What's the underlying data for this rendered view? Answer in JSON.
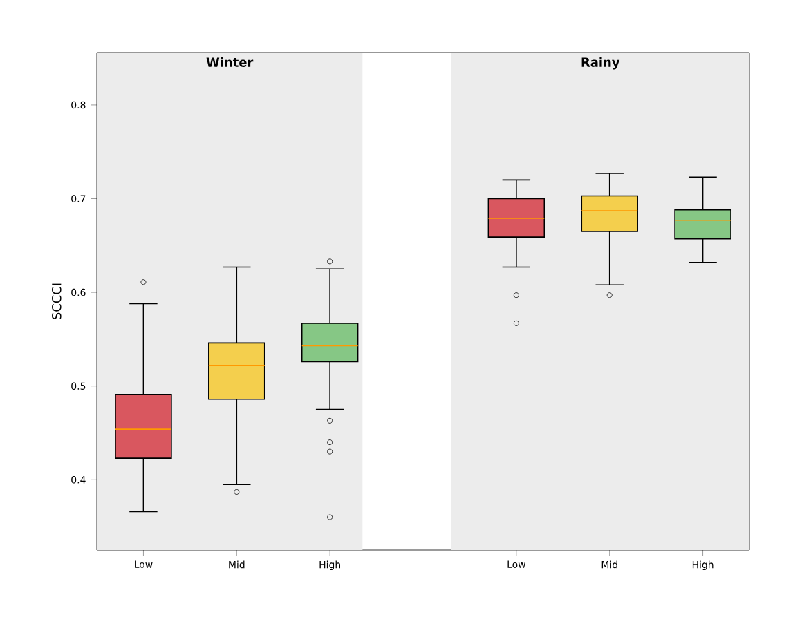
{
  "chart_data": {
    "type": "box",
    "ylabel": "SCCCI",
    "categories": [
      "Low",
      "Mid",
      "High",
      null,
      "Low",
      "Mid",
      "High"
    ],
    "colors": [
      "#d9575f",
      "#f4cf4d",
      "#86c785",
      null,
      "#d9575f",
      "#f4cf4d",
      "#86c785"
    ],
    "boxes": [
      {
        "low": 0.366,
        "q1": 0.423,
        "median": 0.454,
        "q3": 0.491,
        "high": 0.588,
        "outliers": [
          0.611
        ]
      },
      {
        "low": 0.395,
        "q1": 0.486,
        "median": 0.522,
        "q3": 0.546,
        "high": 0.627,
        "outliers": [
          0.387
        ]
      },
      {
        "low": 0.475,
        "q1": 0.526,
        "median": 0.543,
        "q3": 0.567,
        "high": 0.625,
        "outliers": [
          0.633,
          0.463,
          0.44,
          0.43,
          0.36
        ]
      },
      null,
      {
        "low": 0.627,
        "q1": 0.659,
        "median": 0.679,
        "q3": 0.7,
        "high": 0.72,
        "outliers": [
          0.597,
          0.567
        ]
      },
      {
        "low": 0.608,
        "q1": 0.665,
        "median": 0.687,
        "q3": 0.703,
        "high": 0.727,
        "outliers": [
          0.597
        ]
      },
      {
        "low": 0.632,
        "q1": 0.657,
        "median": 0.677,
        "q3": 0.688,
        "high": 0.723
      }
    ],
    "ylim": [
      0.325,
      0.856
    ],
    "yticks": [
      0.4,
      0.5,
      0.6,
      0.7,
      0.8
    ],
    "annotations": [
      "Winter",
      "Rainy"
    ]
  }
}
